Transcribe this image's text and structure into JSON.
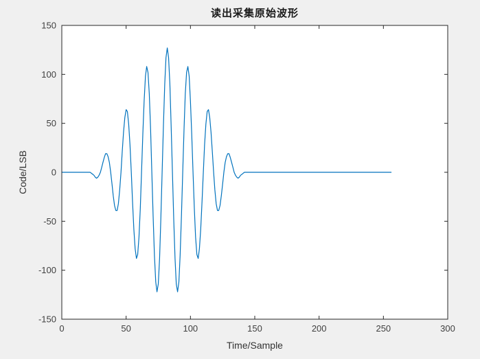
{
  "figure": {
    "background_color": "#f0f0f0",
    "plot_background_color": "#ffffff",
    "axis_color": "#262626",
    "tick_label_color": "#3f3f3f",
    "label_color": "#333333"
  },
  "chart_data": {
    "type": "line",
    "title": "读出采集原始波形",
    "xlabel": "Time/Sample",
    "ylabel": "Code/LSB",
    "xlim": [
      0,
      300
    ],
    "ylim": [
      -150,
      150
    ],
    "xticks": [
      0,
      50,
      100,
      150,
      200,
      250,
      300
    ],
    "yticks": [
      -150,
      -100,
      -50,
      0,
      50,
      100,
      150
    ],
    "grid": false,
    "legend_position": "none",
    "line_color": "#0072BD",
    "series": [
      {
        "name": "acquired-waveform",
        "x_start": 0,
        "x_step": 1,
        "values": [
          0,
          0,
          0,
          0,
          0,
          0,
          0,
          0,
          0,
          0,
          0,
          0,
          0,
          0,
          0,
          0,
          0,
          0,
          0,
          0,
          0,
          0,
          0,
          -1,
          -2,
          -3,
          -5,
          -6,
          -5,
          -3,
          0,
          5,
          10,
          15,
          19,
          19,
          16,
          10,
          0,
          -12,
          -24,
          -34,
          -39,
          -39,
          -32,
          -18,
          0,
          21,
          41,
          56,
          64,
          62,
          49,
          28,
          0,
          -30,
          -58,
          -78,
          -88,
          -84,
          -66,
          -37,
          0,
          39,
          73,
          98,
          108,
          102,
          80,
          44,
          0,
          -45,
          -85,
          -112,
          -122,
          -114,
          -88,
          -48,
          0,
          48,
          90,
          117,
          127,
          117,
          90,
          48,
          0,
          -48,
          -88,
          -114,
          -122,
          -112,
          -85,
          -45,
          0,
          44,
          80,
          102,
          108,
          98,
          73,
          39,
          0,
          -37,
          -66,
          -84,
          -88,
          -78,
          -58,
          -30,
          0,
          28,
          49,
          62,
          64,
          56,
          41,
          21,
          0,
          -18,
          -32,
          -39,
          -39,
          -34,
          -24,
          -12,
          0,
          10,
          16,
          19,
          19,
          15,
          10,
          5,
          0,
          -3,
          -5,
          -6,
          -5,
          -3,
          -2,
          -1,
          0,
          0,
          0,
          0,
          0,
          0,
          0,
          0,
          0,
          0,
          0,
          0,
          0,
          0,
          0,
          0,
          0,
          0,
          0,
          0,
          0,
          0,
          0,
          0,
          0,
          0,
          0,
          0,
          0,
          0,
          0,
          0,
          0,
          0,
          0,
          0,
          0,
          0,
          0,
          0,
          0,
          0,
          0,
          0,
          0,
          0,
          0,
          0,
          0,
          0,
          0,
          0,
          0,
          0,
          0,
          0,
          0,
          0,
          0,
          0,
          0,
          0,
          0,
          0,
          0,
          0,
          0,
          0,
          0,
          0,
          0,
          0,
          0,
          0,
          0,
          0,
          0,
          0,
          0,
          0,
          0,
          0,
          0,
          0,
          0,
          0,
          0,
          0,
          0,
          0,
          0,
          0,
          0,
          0,
          0,
          0,
          0,
          0,
          0,
          0,
          0,
          0,
          0,
          0,
          0,
          0,
          0,
          0,
          0,
          0,
          0,
          0,
          0,
          0,
          0
        ]
      }
    ]
  }
}
